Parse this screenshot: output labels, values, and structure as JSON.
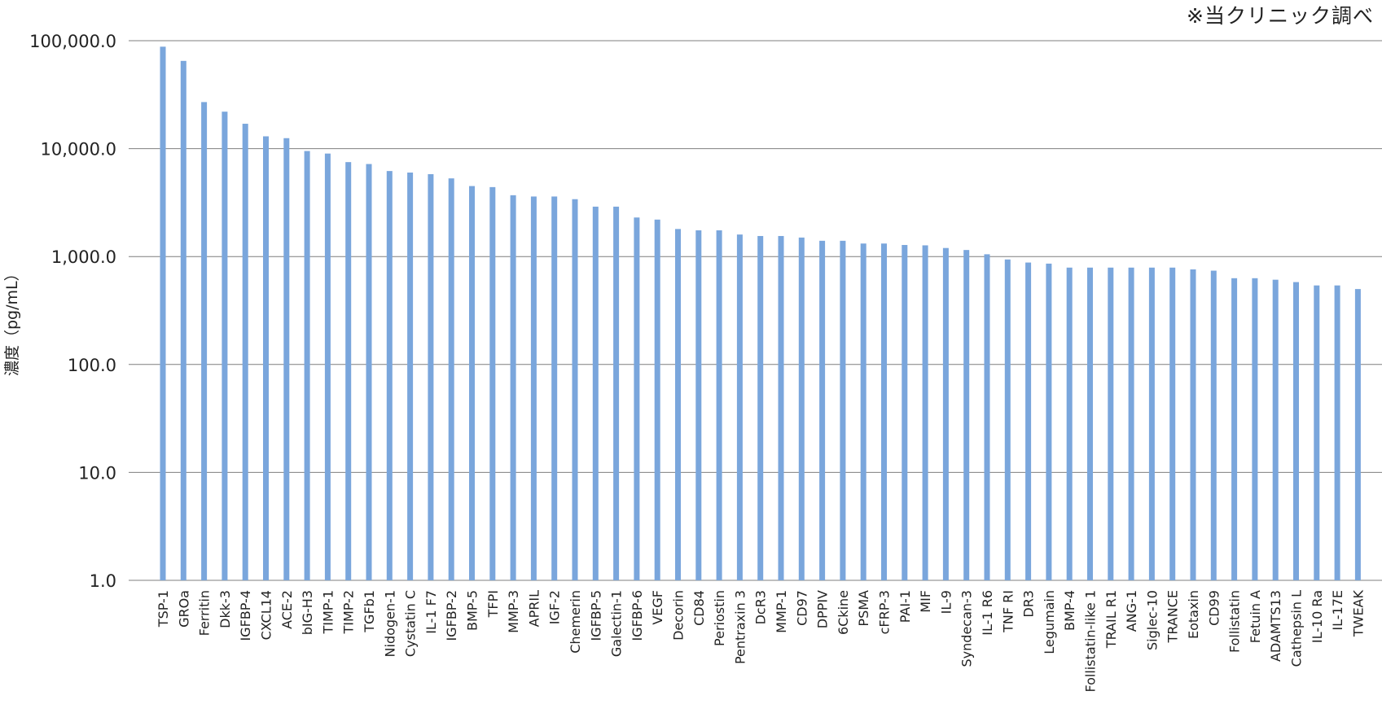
{
  "note": "※当クリニック調べ",
  "colors": {
    "bar": "#7aa6dc",
    "grid": "#7f7f7f",
    "text": "#222222"
  },
  "chart_data": {
    "type": "bar",
    "title": "",
    "xlabel": "",
    "ylabel": "濃度（pg/mL）",
    "yscale": "log",
    "ylim": [
      1,
      100000
    ],
    "yticks": [
      1,
      10,
      100,
      1000,
      10000,
      100000
    ],
    "ytick_labels": [
      "1.0",
      "10.0",
      "100.0",
      "1,000.0",
      "10,000.0",
      "100,000.0"
    ],
    "grid": true,
    "legend": "none",
    "categories": [
      "TSP-1",
      "GROa",
      "Ferritin",
      "Dkk-3",
      "IGFBP-4",
      "CXCL14",
      "ACE-2",
      "bIG-H3",
      "TIMP-1",
      "TIMP-2",
      "TGFb1",
      "Nidogen-1",
      "Cystatin C",
      "IL-1 F7",
      "IGFBP-2",
      "BMP-5",
      "TFPI",
      "MMP-3",
      "APRIL",
      "IGF-2",
      "Chemerin",
      "IGFBP-5",
      "Galectin-1",
      "IGFBP-6",
      "VEGF",
      "Decorin",
      "CD84",
      "Periostin",
      "Pentraxin 3",
      "DcR3",
      "MMP-1",
      "CD97",
      "DPPIV",
      "6Ckine",
      "PSMA",
      "cFRP-3",
      "PAI-1",
      "MIF",
      "IL-9",
      "Syndecan-3",
      "IL-1 R6",
      "TNF RI",
      "DR3",
      "Legumain",
      "BMP-4",
      "Follistatin-like 1",
      "TRAIL R1",
      "ANG-1",
      "Siglec-10",
      "TRANCE",
      "Eotaxin",
      "CD99",
      "Follistatin",
      "Fetuin A",
      "ADAMTS13",
      "Cathepsin L",
      "IL-10 Ra",
      "IL-17E",
      "TWEAK"
    ],
    "values": [
      88000,
      65000,
      27000,
      22000,
      17000,
      13000,
      12500,
      9500,
      9000,
      7500,
      7200,
      6200,
      6000,
      5800,
      5300,
      4500,
      4400,
      3700,
      3600,
      3600,
      3400,
      2900,
      2900,
      2300,
      2200,
      1800,
      1750,
      1750,
      1600,
      1550,
      1550,
      1500,
      1400,
      1400,
      1320,
      1320,
      1280,
      1270,
      1200,
      1150,
      1050,
      940,
      880,
      860,
      790,
      790,
      790,
      790,
      790,
      790,
      760,
      740,
      630,
      630,
      610,
      580,
      540,
      540,
      500
    ]
  }
}
